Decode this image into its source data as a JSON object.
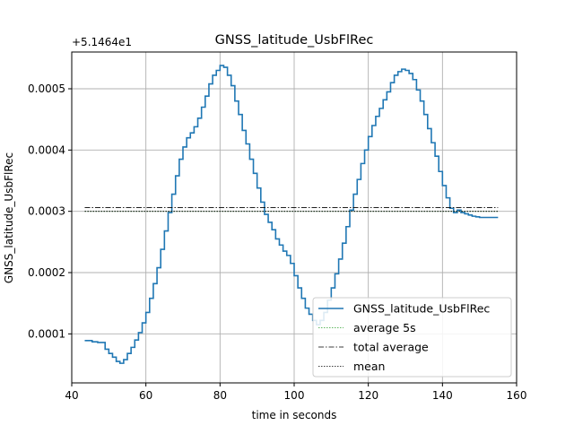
{
  "chart_data": {
    "type": "line",
    "title": "GNSS_latitude_UsbFlRec",
    "xlabel": "time in seconds",
    "ylabel": "GNSS_latitude_UsbFlRec",
    "offset_label": "+5.1464e1",
    "xlim": [
      40,
      160
    ],
    "ylim": [
      2e-05,
      0.00056
    ],
    "x_ticks": [
      40,
      60,
      80,
      100,
      120,
      140,
      160
    ],
    "x_tick_labels": [
      "40",
      "60",
      "80",
      "100",
      "120",
      "140",
      "160"
    ],
    "y_ticks": [
      0.0001,
      0.0002,
      0.0003,
      0.0004,
      0.0005
    ],
    "y_tick_labels": [
      "0.0001",
      "0.0002",
      "0.0003",
      "0.0004",
      "0.0005"
    ],
    "grid": true,
    "legend_position": "lower-right",
    "legend": [
      "GNSS_latitude_UsbFlRec",
      "average 5s",
      "total average",
      "mean"
    ],
    "colors": {
      "main": "#1f77b4",
      "average_5s": "#2ca02c",
      "total_average": "#000000",
      "mean": "#000000",
      "grid": "#b0b0b0"
    },
    "series": [
      {
        "name": "GNSS_latitude_UsbFlRec",
        "style": "solid",
        "x": [
          43.5,
          45.5,
          47,
          49,
          50,
          51,
          52,
          53,
          54,
          55,
          56,
          57,
          58,
          59,
          60,
          61,
          62,
          63,
          64,
          65,
          66,
          67,
          68,
          69,
          70,
          71,
          72,
          73,
          74,
          75,
          76,
          77,
          78,
          79,
          80,
          81,
          82,
          83,
          84,
          85,
          86,
          87,
          88,
          89,
          90,
          91,
          92,
          93,
          94,
          95,
          96,
          97,
          98,
          99,
          100,
          101,
          102,
          103,
          104,
          105,
          106,
          107,
          108,
          109,
          110,
          111,
          112,
          113,
          114,
          115,
          116,
          117,
          118,
          119,
          120,
          121,
          122,
          123,
          124,
          125,
          126,
          127,
          128,
          129,
          130,
          131,
          132,
          133,
          134,
          135,
          136,
          137,
          138,
          139,
          140,
          141,
          142,
          143,
          144,
          145,
          146,
          147,
          148,
          149,
          150,
          155
        ],
        "y": [
          8.9e-05,
          8.7e-05,
          8.6e-05,
          7.5e-05,
          6.8e-05,
          6.2e-05,
          5.5e-05,
          5.2e-05,
          5.8e-05,
          6.8e-05,
          7.8e-05,
          9e-05,
          0.000102,
          0.000118,
          0.000135,
          0.000158,
          0.000182,
          0.000208,
          0.000238,
          0.000268,
          0.000298,
          0.000328,
          0.000358,
          0.000385,
          0.000405,
          0.00042,
          0.000428,
          0.000438,
          0.000452,
          0.00047,
          0.000488,
          0.000508,
          0.000522,
          0.00053,
          0.000538,
          0.000535,
          0.000522,
          0.000505,
          0.00048,
          0.000458,
          0.000432,
          0.00041,
          0.000385,
          0.000362,
          0.000338,
          0.000315,
          0.000295,
          0.000282,
          0.00027,
          0.000255,
          0.000245,
          0.000235,
          0.000228,
          0.000215,
          0.000195,
          0.000175,
          0.000158,
          0.000142,
          0.000132,
          0.000122,
          0.000115,
          0.000122,
          0.000135,
          0.000155,
          0.000175,
          0.000198,
          0.000222,
          0.000248,
          0.000275,
          0.000302,
          0.000328,
          0.000352,
          0.000378,
          0.0004,
          0.000422,
          0.00044,
          0.000455,
          0.000468,
          0.000482,
          0.000495,
          0.00051,
          0.000522,
          0.000528,
          0.000532,
          0.00053,
          0.000525,
          0.000515,
          0.000498,
          0.00048,
          0.000458,
          0.000435,
          0.000412,
          0.00039,
          0.000365,
          0.000342,
          0.000322,
          0.000305,
          0.000298,
          0.000302,
          0.000298,
          0.000296,
          0.000294,
          0.000292,
          0.000291,
          0.00029,
          0.00029
        ]
      },
      {
        "name": "average 5s",
        "style": "dotted",
        "x": [
          43.5,
          155
        ],
        "y": [
          0.0003,
          0.0003
        ]
      },
      {
        "name": "total average",
        "style": "dashdot",
        "x": [
          43.5,
          155
        ],
        "y": [
          0.000306,
          0.000306
        ]
      },
      {
        "name": "mean",
        "style": "dotted",
        "x": [
          43.5,
          155
        ],
        "y": [
          0.0003,
          0.0003
        ]
      }
    ]
  }
}
